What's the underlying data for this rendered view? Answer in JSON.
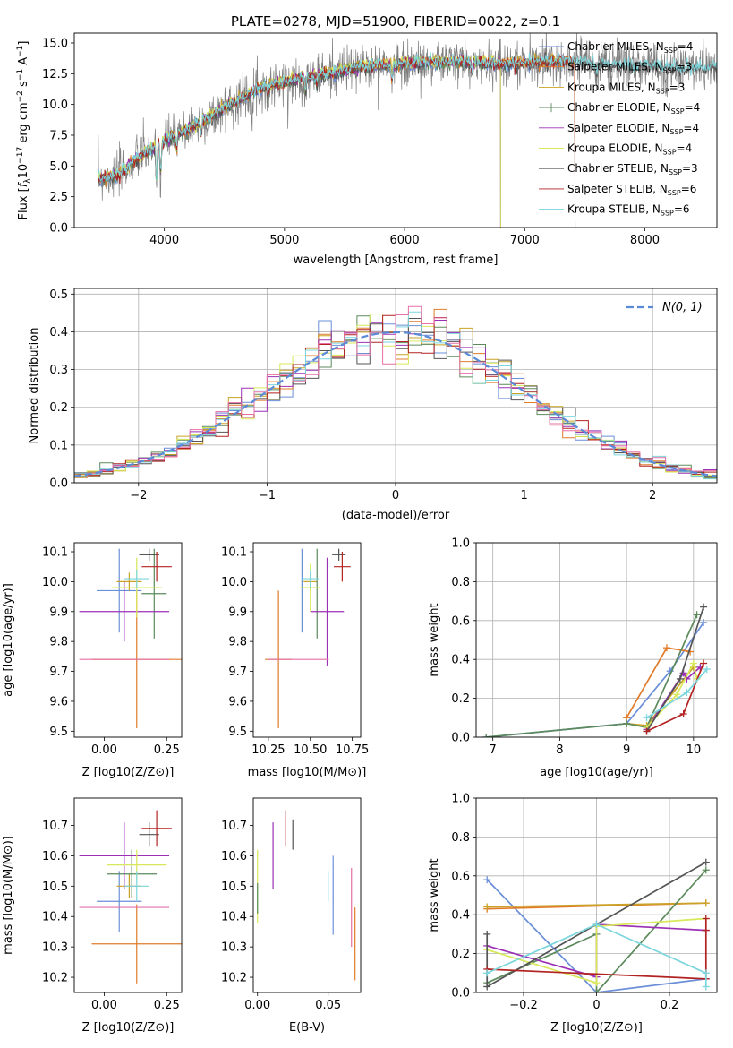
{
  "figure_title": "PLATE=0278, MJD=51900, FIBERID=0022, z=0.1",
  "colors": {
    "Chabrier MILES": "#6a8fd8",
    "Salpeter MILES": "#e07b2a",
    "Kroupa MILES": "#c9a227",
    "Chabrier ELODIE": "#5c8a5c",
    "Salpeter ELODIE": "#9b30b5",
    "Kroupa ELODIE": "#d8e85a",
    "Chabrier STELIB": "#555555",
    "Salpeter STELIB": "#b22222",
    "Kroupa STELIB": "#7ad6dc",
    "extra_pink": "#e66fa6",
    "normal_curve": "#5b8ad6",
    "data_spectrum": "#7f7f7f"
  },
  "chart_data": [
    {
      "id": "spectrum",
      "type": "line",
      "title": "PLATE=0278, MJD=51900, FIBERID=0022, z=0.1",
      "xlabel": "wavelength [Angstrom, rest frame]",
      "ylabel": "Flux [f_λ 10^-17 erg cm^-2 s^-1 A^-1]",
      "xlim": [
        3250,
        8600
      ],
      "ylim": [
        0,
        15.8
      ],
      "xticks": [
        4000,
        5000,
        6000,
        7000,
        8000
      ],
      "yticks": [
        0.0,
        2.5,
        5.0,
        7.5,
        10.0,
        12.5,
        15.0
      ],
      "legend_location": "right",
      "legend": [
        {
          "name": "Chabrier MILES",
          "nssp": "4"
        },
        {
          "name": "Salpeter MILES",
          "nssp": "3"
        },
        {
          "name": "Kroupa MILES",
          "nssp": "3"
        },
        {
          "name": "Chabrier ELODIE",
          "nssp": "4"
        },
        {
          "name": "Salpeter ELODIE",
          "nssp": "4"
        },
        {
          "name": "Kroupa ELODIE",
          "nssp": "4"
        },
        {
          "name": "Chabrier STELIB",
          "nssp": "3"
        },
        {
          "name": "Salpeter STELIB",
          "nssp": "6"
        },
        {
          "name": "Kroupa STELIB",
          "nssp": "6"
        }
      ],
      "continuum": [
        [
          3450,
          4.0
        ],
        [
          3600,
          4.2
        ],
        [
          3700,
          5.0
        ],
        [
          3800,
          5.8
        ],
        [
          3900,
          6.4
        ],
        [
          4000,
          7.0
        ],
        [
          4100,
          7.6
        ],
        [
          4200,
          8.0
        ],
        [
          4300,
          8.6
        ],
        [
          4400,
          9.0
        ],
        [
          4500,
          9.8
        ],
        [
          4600,
          10.3
        ],
        [
          4700,
          10.8
        ],
        [
          4800,
          11.4
        ],
        [
          4900,
          11.6
        ],
        [
          5000,
          11.8
        ],
        [
          5200,
          12.3
        ],
        [
          5400,
          12.6
        ],
        [
          5600,
          13.0
        ],
        [
          5800,
          13.2
        ],
        [
          6000,
          13.3
        ],
        [
          6200,
          13.4
        ],
        [
          6400,
          13.5
        ],
        [
          6600,
          13.4
        ],
        [
          6800,
          13.3
        ],
        [
          7000,
          13.4
        ],
        [
          7200,
          13.5
        ],
        [
          7400,
          13.5
        ],
        [
          7600,
          13.3
        ],
        [
          7800,
          13.2
        ],
        [
          8000,
          13.1
        ],
        [
          8300,
          13.0
        ],
        [
          8600,
          13.0
        ]
      ],
      "absorption_features": [
        [
          3934,
          3.5
        ],
        [
          3969,
          3.0
        ],
        [
          4102,
          1.6
        ],
        [
          4305,
          1.2
        ],
        [
          4861,
          1.0
        ],
        [
          5175,
          1.6
        ],
        [
          5270,
          0.8
        ],
        [
          5895,
          1.6
        ],
        [
          6563,
          1.0
        ],
        [
          7600,
          1.2
        ]
      ]
    },
    {
      "id": "residuals",
      "type": "step",
      "xlabel": "(data-model)/error",
      "ylabel": "Normed distribution",
      "xlim": [
        -2.5,
        2.5
      ],
      "ylim": [
        0,
        0.515
      ],
      "xticks": [
        -2,
        -1,
        0,
        1,
        2
      ],
      "yticks": [
        0.0,
        0.1,
        0.2,
        0.3,
        0.4,
        0.5
      ],
      "grid": true,
      "legend_location": "upper right",
      "normal_label": "N(0, 1)",
      "bin_width": 0.1
    },
    {
      "id": "age_vs_Z",
      "type": "errorbar",
      "xlabel": "Z [log10(Z/Z⊙)]",
      "ylabel": "age [log10(age/yr)]",
      "xlim": [
        -0.12,
        0.31
      ],
      "ylim": [
        9.48,
        10.13
      ],
      "xticks": [
        0.0,
        0.25
      ],
      "xtick_labels": [
        "0.00",
        "0.25"
      ],
      "yticks": [
        9.5,
        9.6,
        9.7,
        9.8,
        9.9,
        10.0,
        10.1
      ],
      "points": [
        {
          "series": "Chabrier MILES",
          "x": 0.06,
          "xerr": 0.09,
          "y": 9.97,
          "yerr": 0.14
        },
        {
          "series": "Salpeter MILES",
          "x": 0.13,
          "xerr": 0.18,
          "y": 9.74,
          "yerr": 0.23
        },
        {
          "series": "Kroupa MILES",
          "x": 0.1,
          "xerr": 0.05,
          "y": 10.0,
          "yerr": 0.03
        },
        {
          "series": "Chabrier ELODIE",
          "x": 0.2,
          "xerr": 0.05,
          "y": 9.96,
          "yerr": 0.15
        },
        {
          "series": "Salpeter ELODIE",
          "x": 0.08,
          "xerr": 0.18,
          "y": 9.9,
          "yerr": 0.1
        },
        {
          "series": "Kroupa ELODIE",
          "x": 0.13,
          "xerr": 0.1,
          "y": 9.98,
          "yerr": 0.1
        },
        {
          "series": "Chabrier STELIB",
          "x": 0.18,
          "xerr": 0.04,
          "y": 10.09,
          "yerr": 0.02
        },
        {
          "series": "Salpeter STELIB",
          "x": 0.21,
          "xerr": 0.06,
          "y": 10.05,
          "yerr": 0.05
        },
        {
          "series": "Kroupa STELIB",
          "x": 0.13,
          "xerr": 0.05,
          "y": 10.01,
          "yerr": 0.03
        },
        {
          "series": "extra_pink",
          "x": 0.08,
          "xerr": 0.18,
          "y": 9.74,
          "yerr": 0.0
        }
      ]
    },
    {
      "id": "age_vs_mass",
      "type": "errorbar",
      "xlabel": "mass [log10(M/M⊙)]",
      "xlim": [
        10.16,
        10.8
      ],
      "ylim": [
        9.48,
        10.13
      ],
      "xticks": [
        10.25,
        10.5,
        10.75
      ],
      "xtick_labels": [
        "10.25",
        "10.50",
        "10.75"
      ],
      "yticks": [
        9.5,
        9.6,
        9.7,
        9.8,
        9.9,
        10.0,
        10.1
      ],
      "points": [
        {
          "series": "Chabrier MILES",
          "x": 10.45,
          "xerr": 0.0,
          "y": 9.97,
          "yerr": 0.14
        },
        {
          "series": "Salpeter MILES",
          "x": 10.31,
          "xerr": 0.08,
          "y": 9.74,
          "yerr": 0.23
        },
        {
          "series": "Kroupa MILES",
          "x": 10.5,
          "xerr": 0.04,
          "y": 10.0,
          "yerr": 0.03
        },
        {
          "series": "Chabrier ELODIE",
          "x": 10.54,
          "xerr": 0.0,
          "y": 9.96,
          "yerr": 0.15
        },
        {
          "series": "Salpeter ELODIE",
          "x": 10.6,
          "xerr": 0.1,
          "y": 9.9,
          "yerr": 0.18
        },
        {
          "series": "Kroupa ELODIE",
          "x": 10.5,
          "xerr": 0.06,
          "y": 9.98,
          "yerr": 0.08
        },
        {
          "series": "Chabrier STELIB",
          "x": 10.67,
          "xerr": 0.04,
          "y": 10.09,
          "yerr": 0.02
        },
        {
          "series": "Salpeter STELIB",
          "x": 10.69,
          "xerr": 0.05,
          "y": 10.05,
          "yerr": 0.05
        },
        {
          "series": "Kroupa STELIB",
          "x": 10.5,
          "xerr": 0.05,
          "y": 10.01,
          "yerr": 0.03
        },
        {
          "series": "extra_pink",
          "x": 10.43,
          "xerr": 0.18,
          "y": 9.74,
          "yerr": 0.0
        }
      ]
    },
    {
      "id": "weight_vs_age",
      "type": "line",
      "xlabel": "age [log10(age/yr)]",
      "ylabel": "mass weight",
      "xlim": [
        6.75,
        10.35
      ],
      "ylim": [
        0,
        1
      ],
      "xticks": [
        7,
        8,
        9,
        10
      ],
      "yticks": [
        0.0,
        0.2,
        0.4,
        0.6,
        0.8,
        1.0
      ],
      "grid": true,
      "series": [
        {
          "name": "Chabrier MILES",
          "points": [
            [
              6.9,
              0.0
            ],
            [
              9.0,
              0.07
            ],
            [
              9.65,
              0.34
            ],
            [
              10.15,
              0.59
            ]
          ]
        },
        {
          "name": "Salpeter MILES",
          "points": [
            [
              9.0,
              0.1
            ],
            [
              9.6,
              0.46
            ],
            [
              9.95,
              0.44
            ]
          ]
        },
        {
          "name": "Kroupa MILES",
          "points": [
            [
              9.0,
              0.07
            ],
            [
              9.3,
              0.06
            ],
            [
              10.0,
              0.36
            ]
          ]
        },
        {
          "name": "Chabrier ELODIE",
          "points": [
            [
              6.9,
              0.0
            ],
            [
              9.0,
              0.07
            ],
            [
              9.3,
              0.05
            ],
            [
              10.05,
              0.63
            ]
          ]
        },
        {
          "name": "Salpeter ELODIE",
          "points": [
            [
              9.3,
              0.04
            ],
            [
              9.85,
              0.33
            ],
            [
              9.9,
              0.3
            ],
            [
              10.1,
              0.36
            ]
          ]
        },
        {
          "name": "Kroupa ELODIE",
          "points": [
            [
              9.3,
              0.05
            ],
            [
              9.75,
              0.22
            ],
            [
              10.0,
              0.38
            ],
            [
              10.05,
              0.3
            ]
          ]
        },
        {
          "name": "Chabrier STELIB",
          "points": [
            [
              9.3,
              0.03
            ],
            [
              9.8,
              0.3
            ],
            [
              10.15,
              0.67
            ]
          ]
        },
        {
          "name": "Salpeter STELIB",
          "points": [
            [
              9.3,
              0.03
            ],
            [
              9.85,
              0.12
            ],
            [
              10.15,
              0.38
            ]
          ]
        },
        {
          "name": "Kroupa STELIB",
          "points": [
            [
              9.3,
              0.1
            ],
            [
              9.9,
              0.23
            ],
            [
              10.2,
              0.35
            ]
          ]
        }
      ]
    },
    {
      "id": "mass_vs_Z",
      "type": "errorbar",
      "xlabel": "Z [log10(Z/Z⊙)]",
      "ylabel": "mass [log10(M/M⊙)]",
      "xlim": [
        -0.12,
        0.31
      ],
      "ylim": [
        10.15,
        10.79
      ],
      "xticks": [
        0.0,
        0.25
      ],
      "xtick_labels": [
        "0.00",
        "0.25"
      ],
      "yticks": [
        10.2,
        10.3,
        10.4,
        10.5,
        10.6,
        10.7
      ],
      "points": [
        {
          "series": "Chabrier MILES",
          "x": 0.06,
          "xerr": 0.09,
          "y": 10.45,
          "yerr": 0.1
        },
        {
          "series": "Salpeter MILES",
          "x": 0.13,
          "xerr": 0.18,
          "y": 10.31,
          "yerr": 0.13
        },
        {
          "series": "Kroupa MILES",
          "x": 0.1,
          "xerr": 0.05,
          "y": 10.5,
          "yerr": 0.04
        },
        {
          "series": "Chabrier ELODIE",
          "x": 0.11,
          "xerr": 0.1,
          "y": 10.54,
          "yerr": 0.08
        },
        {
          "series": "Salpeter ELODIE",
          "x": 0.08,
          "xerr": 0.18,
          "y": 10.6,
          "yerr": 0.11
        },
        {
          "series": "Kroupa ELODIE",
          "x": 0.13,
          "xerr": 0.12,
          "y": 10.57,
          "yerr": 0.05
        },
        {
          "series": "Chabrier STELIB",
          "x": 0.18,
          "xerr": 0.04,
          "y": 10.67,
          "yerr": 0.04
        },
        {
          "series": "Salpeter STELIB",
          "x": 0.21,
          "xerr": 0.06,
          "y": 10.69,
          "yerr": 0.06
        },
        {
          "series": "Kroupa STELIB",
          "x": 0.13,
          "xerr": 0.05,
          "y": 10.5,
          "yerr": 0.05
        },
        {
          "series": "extra_pink",
          "x": 0.08,
          "xerr": 0.18,
          "y": 10.43,
          "yerr": 0.0
        }
      ]
    },
    {
      "id": "mass_vs_ebv",
      "type": "errorbar",
      "xlabel": "E(B-V)",
      "xlim": [
        -0.003,
        0.073
      ],
      "ylim": [
        10.15,
        10.79
      ],
      "xticks": [
        0.0,
        0.05
      ],
      "xtick_labels": [
        "0.00",
        "0.05"
      ],
      "yticks": [
        10.2,
        10.3,
        10.4,
        10.5,
        10.6,
        10.7
      ],
      "points": [
        {
          "series": "Kroupa ELODIE",
          "x": 0.0,
          "xerr": 0.0,
          "y": 10.5,
          "yerr": 0.12
        },
        {
          "series": "Chabrier ELODIE",
          "x": 0.0,
          "xerr": 0.0,
          "y": 10.46,
          "yerr": 0.05
        },
        {
          "series": "Salpeter ELODIE",
          "x": 0.011,
          "xerr": 0.0,
          "y": 10.6,
          "yerr": 0.11
        },
        {
          "series": "Salpeter STELIB",
          "x": 0.02,
          "xerr": 0.0,
          "y": 10.69,
          "yerr": 0.06
        },
        {
          "series": "Chabrier STELIB",
          "x": 0.025,
          "xerr": 0.0,
          "y": 10.67,
          "yerr": 0.05
        },
        {
          "series": "Kroupa STELIB",
          "x": 0.05,
          "xerr": 0.0,
          "y": 10.5,
          "yerr": 0.05
        },
        {
          "series": "Chabrier MILES",
          "x": 0.0535,
          "xerr": 0.0,
          "y": 10.47,
          "yerr": 0.13
        },
        {
          "series": "extra_pink",
          "x": 0.0665,
          "xerr": 0.0,
          "y": 10.43,
          "yerr": 0.13
        },
        {
          "series": "Salpeter MILES",
          "x": 0.069,
          "xerr": 0.0,
          "y": 10.31,
          "yerr": 0.12
        }
      ]
    },
    {
      "id": "weight_vs_Z",
      "type": "line",
      "xlabel": "Z [log10(Z/Z⊙)]",
      "ylabel": "mass weight",
      "xlim": [
        -0.33,
        0.33
      ],
      "ylim": [
        0,
        1
      ],
      "xticks": [
        -0.2,
        0.0,
        0.2
      ],
      "yticks": [
        0.0,
        0.2,
        0.4,
        0.6,
        0.8,
        1.0
      ],
      "grid": true,
      "series": [
        {
          "name": "Chabrier MILES",
          "points": [
            [
              -0.3,
              0.58
            ],
            [
              0.0,
              0.0
            ],
            [
              0.3,
              0.07
            ]
          ]
        },
        {
          "name": "Salpeter MILES",
          "points": [
            [
              -0.3,
              0.43
            ],
            [
              0.3,
              0.46
            ]
          ]
        },
        {
          "name": "Kroupa MILES",
          "points": [
            [
              -0.3,
              0.44
            ],
            [
              0.3,
              0.46
            ]
          ]
        },
        {
          "name": "Chabrier ELODIE",
          "points": [
            [
              -0.3,
              0.05
            ],
            [
              0.0,
              0.3
            ],
            [
              0.0,
              0.0
            ],
            [
              0.3,
              0.63
            ]
          ]
        },
        {
          "name": "Salpeter ELODIE",
          "points": [
            [
              -0.3,
              0.24
            ],
            [
              0.0,
              0.08
            ],
            [
              0.0,
              0.35
            ],
            [
              0.3,
              0.32
            ]
          ]
        },
        {
          "name": "Kroupa ELODIE",
          "points": [
            [
              -0.3,
              0.22
            ],
            [
              0.0,
              0.05
            ],
            [
              0.0,
              0.34
            ],
            [
              0.3,
              0.38
            ]
          ]
        },
        {
          "name": "Chabrier STELIB",
          "points": [
            [
              -0.3,
              0.3
            ],
            [
              -0.3,
              0.03
            ],
            [
              0.3,
              0.67
            ]
          ]
        },
        {
          "name": "Salpeter STELIB",
          "points": [
            [
              -0.3,
              0.12
            ],
            [
              0.3,
              0.07
            ],
            [
              0.3,
              0.38
            ],
            [
              0.3,
              0.32
            ]
          ]
        },
        {
          "name": "Kroupa STELIB",
          "points": [
            [
              -0.3,
              0.1
            ],
            [
              0.0,
              0.35
            ],
            [
              0.3,
              0.1
            ],
            [
              0.3,
              0.03
            ]
          ]
        }
      ]
    }
  ]
}
